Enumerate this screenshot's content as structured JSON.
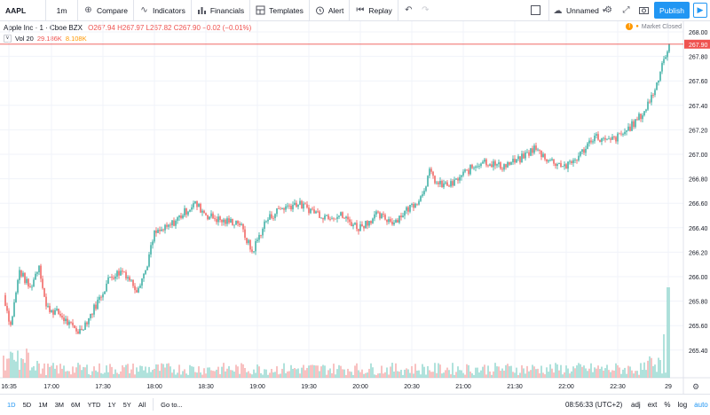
{
  "toolbar": {
    "symbol": "AAPL",
    "interval": "1m",
    "compare": "Compare",
    "indicators": "Indicators",
    "financials": "Financials",
    "templates": "Templates",
    "alert": "Alert",
    "replay": "Replay",
    "layout_name": "Unnamed",
    "publish": "Publish"
  },
  "legend": {
    "title": "Apple Inc · 1 · Cboe BZX",
    "ohlc": "O267.94  H267.97  L267.82  C267.90  −0.02 (−0.01%)",
    "vol_label": "Vol 20",
    "vol_value": "29.186K",
    "vol_ma": "8.108K",
    "market_status": "Market Closed"
  },
  "price_axis": {
    "ticks": [
      "268.00",
      "267.80",
      "267.60",
      "267.40",
      "267.20",
      "267.00",
      "266.80",
      "266.60",
      "266.40",
      "266.20",
      "266.00",
      "265.80",
      "265.60",
      "265.40"
    ],
    "last_price": "267.90"
  },
  "time_axis": {
    "ticks": [
      "16:35",
      "17:00",
      "17:30",
      "18:00",
      "18:30",
      "19:00",
      "19:30",
      "20:00",
      "20:30",
      "21:00",
      "21:30",
      "22:00",
      "22:30",
      "29"
    ]
  },
  "bottom": {
    "ranges": [
      "1D",
      "5D",
      "1M",
      "3M",
      "6M",
      "YTD",
      "1Y",
      "5Y",
      "All"
    ],
    "goto": "Go to...",
    "clock": "08:56:33 (UTC+2)",
    "pct": "%",
    "adj": "adj",
    "ext": "ext",
    "log": "log",
    "auto": "auto"
  },
  "colors": {
    "up": "#26a69a",
    "down": "#ef5350",
    "accent": "#2196f3"
  },
  "chart_data": {
    "type": "candlestick",
    "anchor_points": [
      [
        0,
        265.85
      ],
      [
        8,
        265.6
      ],
      [
        18,
        266.05
      ],
      [
        30,
        265.9
      ],
      [
        40,
        266.1
      ],
      [
        48,
        265.75
      ],
      [
        62,
        265.7
      ],
      [
        75,
        265.6
      ],
      [
        85,
        265.55
      ],
      [
        95,
        265.65
      ],
      [
        110,
        265.85
      ],
      [
        120,
        266.0
      ],
      [
        135,
        266.05
      ],
      [
        150,
        265.9
      ],
      [
        160,
        266.05
      ],
      [
        170,
        266.35
      ],
      [
        185,
        266.4
      ],
      [
        200,
        266.5
      ],
      [
        215,
        266.6
      ],
      [
        230,
        266.5
      ],
      [
        248,
        266.45
      ],
      [
        265,
        266.45
      ],
      [
        280,
        266.2
      ],
      [
        295,
        266.45
      ],
      [
        310,
        266.55
      ],
      [
        330,
        266.6
      ],
      [
        345,
        266.55
      ],
      [
        360,
        266.5
      ],
      [
        380,
        266.5
      ],
      [
        400,
        266.4
      ],
      [
        420,
        266.5
      ],
      [
        440,
        266.45
      ],
      [
        455,
        266.55
      ],
      [
        470,
        266.65
      ],
      [
        480,
        266.85
      ],
      [
        490,
        266.75
      ],
      [
        505,
        266.75
      ],
      [
        520,
        266.85
      ],
      [
        540,
        266.95
      ],
      [
        560,
        266.9
      ],
      [
        580,
        266.95
      ],
      [
        598,
        267.05
      ],
      [
        615,
        266.95
      ],
      [
        635,
        266.9
      ],
      [
        650,
        267.0
      ],
      [
        665,
        267.15
      ],
      [
        680,
        267.1
      ],
      [
        695,
        267.15
      ],
      [
        710,
        267.25
      ],
      [
        722,
        267.35
      ],
      [
        735,
        267.55
      ],
      [
        742,
        267.75
      ],
      [
        752,
        267.9
      ]
    ]
  }
}
